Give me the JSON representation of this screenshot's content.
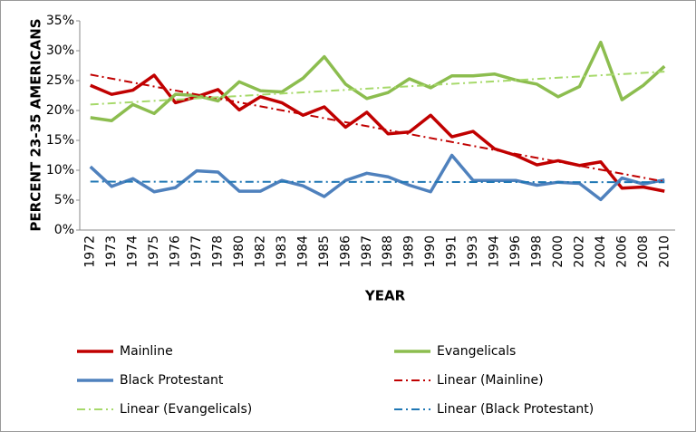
{
  "chart_data": {
    "type": "line",
    "xlabel": "YEAR",
    "ylabel": "PERCENT 23-35 AMERICANS",
    "categories": [
      "1972",
      "1973",
      "1974",
      "1975",
      "1976",
      "1977",
      "1978",
      "1980",
      "1982",
      "1983",
      "1984",
      "1985",
      "1986",
      "1987",
      "1988",
      "1989",
      "1990",
      "1991",
      "1993",
      "1994",
      "1996",
      "1998",
      "2000",
      "2002",
      "2004",
      "2006",
      "2008",
      "2010"
    ],
    "ylim": [
      0,
      35
    ],
    "yticks": [
      {
        "value": 0,
        "label": "0%"
      },
      {
        "value": 5,
        "label": "5%"
      },
      {
        "value": 10,
        "label": "10%"
      },
      {
        "value": 15,
        "label": "15%"
      },
      {
        "value": 20,
        "label": "20%"
      },
      {
        "value": 25,
        "label": "25%"
      },
      {
        "value": 30,
        "label": "30%"
      },
      {
        "value": 35,
        "label": "35%"
      }
    ],
    "series": [
      {
        "name": "Mainline",
        "color": "#c00000",
        "values": [
          24.2,
          22.7,
          23.4,
          25.9,
          21.3,
          22.3,
          23.5,
          20.1,
          22.3,
          21.3,
          19.2,
          20.6,
          17.2,
          19.7,
          16.1,
          16.4,
          19.2,
          15.6,
          16.5,
          13.6,
          12.5,
          10.9,
          11.6,
          10.8,
          11.4,
          7.0,
          7.2,
          6.5
        ]
      },
      {
        "name": "Evangelicals",
        "color": "#8cbd4f",
        "values": [
          18.8,
          18.3,
          21.0,
          19.5,
          22.7,
          22.5,
          21.6,
          24.8,
          23.3,
          23.1,
          25.4,
          29.0,
          24.4,
          22.0,
          23.0,
          25.3,
          23.8,
          25.8,
          25.8,
          26.1,
          25.1,
          24.4,
          22.3,
          24.0,
          31.4,
          21.8,
          24.2,
          27.4
        ]
      },
      {
        "name": "Black Protestant",
        "color": "#4f81bd",
        "values": [
          10.6,
          7.3,
          8.6,
          6.4,
          7.1,
          9.9,
          9.7,
          6.5,
          6.5,
          8.3,
          7.4,
          5.6,
          8.3,
          9.5,
          8.9,
          7.5,
          6.4,
          12.5,
          8.3,
          8.3,
          8.3,
          7.5,
          8.0,
          7.8,
          5.1,
          8.7,
          7.7,
          8.4
        ]
      }
    ],
    "trendlines": [
      {
        "name": "Linear (Mainline)",
        "color": "#c00000",
        "values": [
          26.0,
          8.1
        ]
      },
      {
        "name": "Linear (Evangelicals)",
        "color": "#a6d96a",
        "values": [
          21.0,
          26.5
        ]
      },
      {
        "name": "Linear (Black Protestant)",
        "color": "#1f77b4",
        "values": [
          8.1,
          8.0
        ]
      }
    ]
  }
}
